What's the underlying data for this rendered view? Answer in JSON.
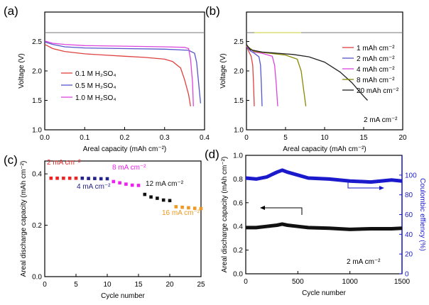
{
  "chart_data": [
    {
      "panel": "(a)",
      "type": "line",
      "xlabel": "Areal capacity (mAh cm⁻²)",
      "ylabel": "Voltage (V)",
      "xlim": [
        0,
        0.4
      ],
      "ylim": [
        1.0,
        3.0
      ],
      "xticks": [
        "0.0",
        "0.1",
        "0.2",
        "0.3",
        "0.4"
      ],
      "yticks": [
        "1.0",
        "1.5",
        "2.0",
        "2.5"
      ],
      "legend_position": "center-left",
      "series": [
        {
          "name": "0.1 M H₂SO₄",
          "color": "#e04040",
          "points": [
            [
              0,
              2.45
            ],
            [
              0.02,
              2.38
            ],
            [
              0.05,
              2.33
            ],
            [
              0.1,
              2.29
            ],
            [
              0.15,
              2.27
            ],
            [
              0.2,
              2.25
            ],
            [
              0.25,
              2.23
            ],
            [
              0.3,
              2.2
            ],
            [
              0.32,
              2.16
            ],
            [
              0.34,
              2.05
            ],
            [
              0.35,
              1.85
            ],
            [
              0.36,
              1.6
            ],
            [
              0.365,
              1.4
            ]
          ]
        },
        {
          "name": "0.5 M H₂SO₄",
          "color": "#5555cc",
          "points": [
            [
              0,
              2.49
            ],
            [
              0.02,
              2.45
            ],
            [
              0.05,
              2.41
            ],
            [
              0.1,
              2.39
            ],
            [
              0.2,
              2.38
            ],
            [
              0.3,
              2.37
            ],
            [
              0.36,
              2.35
            ],
            [
              0.375,
              2.3
            ],
            [
              0.38,
              2.15
            ],
            [
              0.385,
              1.8
            ],
            [
              0.39,
              1.45
            ]
          ]
        },
        {
          "name": "1.0 M H₂SO₄",
          "color": "#dd44dd",
          "points": [
            [
              0,
              2.51
            ],
            [
              0.02,
              2.47
            ],
            [
              0.05,
              2.45
            ],
            [
              0.1,
              2.43
            ],
            [
              0.2,
              2.42
            ],
            [
              0.3,
              2.41
            ],
            [
              0.35,
              2.4
            ],
            [
              0.36,
              2.38
            ],
            [
              0.365,
              2.2
            ],
            [
              0.37,
              1.8
            ],
            [
              0.372,
              1.4
            ]
          ]
        }
      ],
      "reference_line": {
        "y": 2.65,
        "color": "#777777"
      }
    },
    {
      "panel": "(b)",
      "type": "line",
      "xlabel": "Areal capacity (mAh cm⁻²)",
      "ylabel": "Voltage (V)",
      "xlim": [
        0,
        20
      ],
      "ylim": [
        1.0,
        3.0
      ],
      "xticks": [
        "0",
        "5",
        "10",
        "15",
        "20"
      ],
      "yticks": [
        "1.0",
        "1.5",
        "2.0",
        "2.5"
      ],
      "annotation": "2 mA cm⁻²",
      "legend_position": "right",
      "series": [
        {
          "name": "1 mAh cm⁻²",
          "color": "#e04040",
          "points": [
            [
              0,
              2.42
            ],
            [
              0.3,
              2.33
            ],
            [
              0.6,
              2.25
            ],
            [
              0.8,
              2.1
            ],
            [
              0.9,
              1.8
            ],
            [
              1.0,
              1.4
            ]
          ]
        },
        {
          "name": "2 mAh cm⁻²",
          "color": "#5555cc",
          "points": [
            [
              0,
              2.42
            ],
            [
              0.5,
              2.34
            ],
            [
              1.0,
              2.3
            ],
            [
              1.6,
              2.24
            ],
            [
              1.8,
              2.1
            ],
            [
              1.9,
              1.8
            ],
            [
              2.0,
              1.4
            ]
          ]
        },
        {
          "name": "4 mAh cm⁻²",
          "color": "#dd44dd",
          "points": [
            [
              0,
              2.42
            ],
            [
              1,
              2.32
            ],
            [
              2,
              2.3
            ],
            [
              3.3,
              2.25
            ],
            [
              3.6,
              2.1
            ],
            [
              3.8,
              1.8
            ],
            [
              4.0,
              1.4
            ]
          ]
        },
        {
          "name": "8 mAh cm⁻²",
          "color": "#888800",
          "points": [
            [
              0,
              2.43
            ],
            [
              1,
              2.33
            ],
            [
              3,
              2.3
            ],
            [
              5,
              2.27
            ],
            [
              6.5,
              2.2
            ],
            [
              7.0,
              2.0
            ],
            [
              7.3,
              1.7
            ],
            [
              7.6,
              1.4
            ]
          ]
        },
        {
          "name": "20 mAh cm⁻²",
          "color": "#222222",
          "points": [
            [
              0,
              2.45
            ],
            [
              0.5,
              2.36
            ],
            [
              2,
              2.32
            ],
            [
              4,
              2.3
            ],
            [
              6,
              2.28
            ],
            [
              8,
              2.24
            ],
            [
              10,
              2.15
            ],
            [
              12,
              1.98
            ],
            [
              13.5,
              1.8
            ],
            [
              15,
              1.57
            ],
            [
              15.5,
              1.5
            ]
          ]
        }
      ],
      "reference_lines": [
        {
          "y": 2.65,
          "x_start": 0,
          "x_end": 20,
          "color": "#777777"
        },
        {
          "y": 2.65,
          "x_start": 1,
          "x_end": 7,
          "color": "#cccc33"
        }
      ]
    },
    {
      "panel": "(c)",
      "type": "scatter",
      "xlabel": "Cycle number",
      "ylabel": "Areal discharge capacity (mAh cm⁻²)",
      "xlim": [
        0,
        25
      ],
      "ylim": [
        0,
        0.45
      ],
      "xticks": [
        "0",
        "5",
        "10",
        "15",
        "20",
        "25"
      ],
      "yticks": [
        "0.0",
        "0.2",
        "0.4"
      ],
      "series": [
        {
          "name": "2 mA cm⁻²",
          "color": "#ee2222",
          "x": [
            1,
            2,
            3,
            4,
            5
          ],
          "y": [
            0.383,
            0.383,
            0.383,
            0.383,
            0.383
          ]
        },
        {
          "name": "4 mA cm⁻²",
          "color": "#222288",
          "x": [
            6,
            7,
            8,
            9,
            10
          ],
          "y": [
            0.383,
            0.382,
            0.382,
            0.381,
            0.381
          ]
        },
        {
          "name": "8 mA cm⁻²",
          "color": "#ee22ee",
          "x": [
            11,
            12,
            13,
            14,
            15
          ],
          "y": [
            0.37,
            0.365,
            0.36,
            0.356,
            0.355
          ]
        },
        {
          "name": "12 mA cm⁻²",
          "color": "#111111",
          "x": [
            16,
            17,
            18,
            19,
            20
          ],
          "y": [
            0.32,
            0.31,
            0.305,
            0.298,
            0.296
          ]
        },
        {
          "name": "16 mA cm⁻²",
          "color": "#ee9922",
          "x": [
            21,
            22,
            23,
            24,
            25
          ],
          "y": [
            0.272,
            0.27,
            0.268,
            0.266,
            0.265
          ]
        }
      ]
    },
    {
      "panel": "(d)",
      "type": "scatter",
      "xlabel": "Cycle number",
      "ylabel": "Areal discharge capacity (mAh cm⁻²)",
      "y2label": "Coulombic effiency (%)",
      "xlim": [
        0,
        1500
      ],
      "ylim": [
        0,
        1.0
      ],
      "y2lim": [
        0,
        120
      ],
      "xticks": [
        "0",
        "500",
        "1000",
        "1500"
      ],
      "yticks": [
        "0.0",
        "0.2",
        "0.4",
        "0.6",
        "0.8",
        "1.0"
      ],
      "y2ticks": [
        "0",
        "20",
        "40",
        "60",
        "80",
        "100"
      ],
      "annotation": "2 mA cm⁻²",
      "series": [
        {
          "name": "Areal discharge capacity",
          "axis": "left",
          "color": "#111111",
          "x": [
            0,
            100,
            200,
            300,
            350,
            400,
            500,
            600,
            800,
            1000,
            1200,
            1400,
            1500
          ],
          "y": [
            0.39,
            0.39,
            0.4,
            0.41,
            0.42,
            0.41,
            0.4,
            0.39,
            0.385,
            0.375,
            0.38,
            0.38,
            0.385
          ]
        },
        {
          "name": "Coulombic efficiency",
          "axis": "right",
          "color": "#1a1acc",
          "x": [
            0,
            100,
            200,
            300,
            350,
            400,
            500,
            600,
            800,
            1000,
            1200,
            1400,
            1500
          ],
          "y": [
            97,
            96,
            98,
            103,
            105,
            103,
            100,
            97,
            96,
            94,
            93,
            95,
            94
          ]
        }
      ]
    }
  ]
}
